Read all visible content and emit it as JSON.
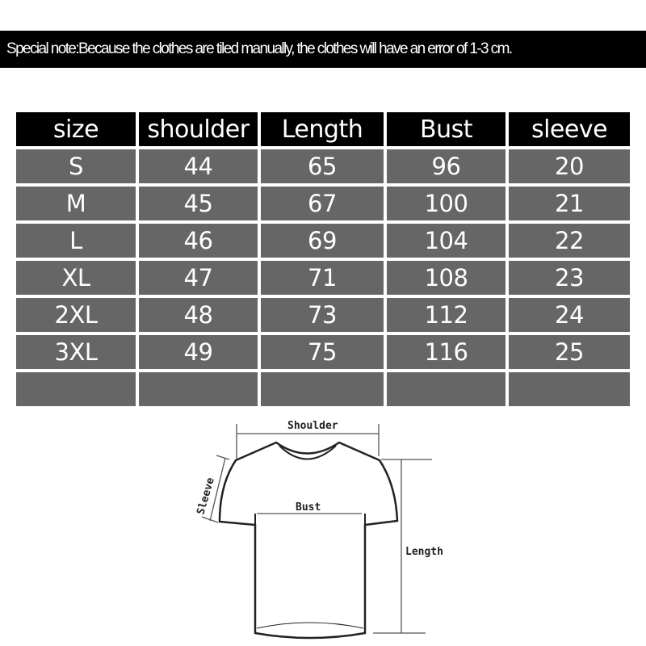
{
  "note": "Special note:Because the clothes are tiled manually, the clothes will have an error of 1-3 cm.",
  "table": {
    "headers": [
      "size",
      "shoulder",
      "Length",
      "Bust",
      "sleeve"
    ],
    "rows": [
      [
        "S",
        "44",
        "65",
        "96",
        "20"
      ],
      [
        "M",
        "45",
        "67",
        "100",
        "21"
      ],
      [
        "L",
        "46",
        "69",
        "104",
        "22"
      ],
      [
        "XL",
        "47",
        "71",
        "108",
        "23"
      ],
      [
        "2XL",
        "48",
        "73",
        "112",
        "24"
      ],
      [
        "3XL",
        "49",
        "75",
        "116",
        "25"
      ],
      [
        "",
        "",
        "",
        "",
        ""
      ]
    ]
  },
  "diagram": {
    "shoulder_label": "Shoulder",
    "sleeve_label": "Sleeve",
    "bust_label": "Bust",
    "length_label": "Length"
  }
}
